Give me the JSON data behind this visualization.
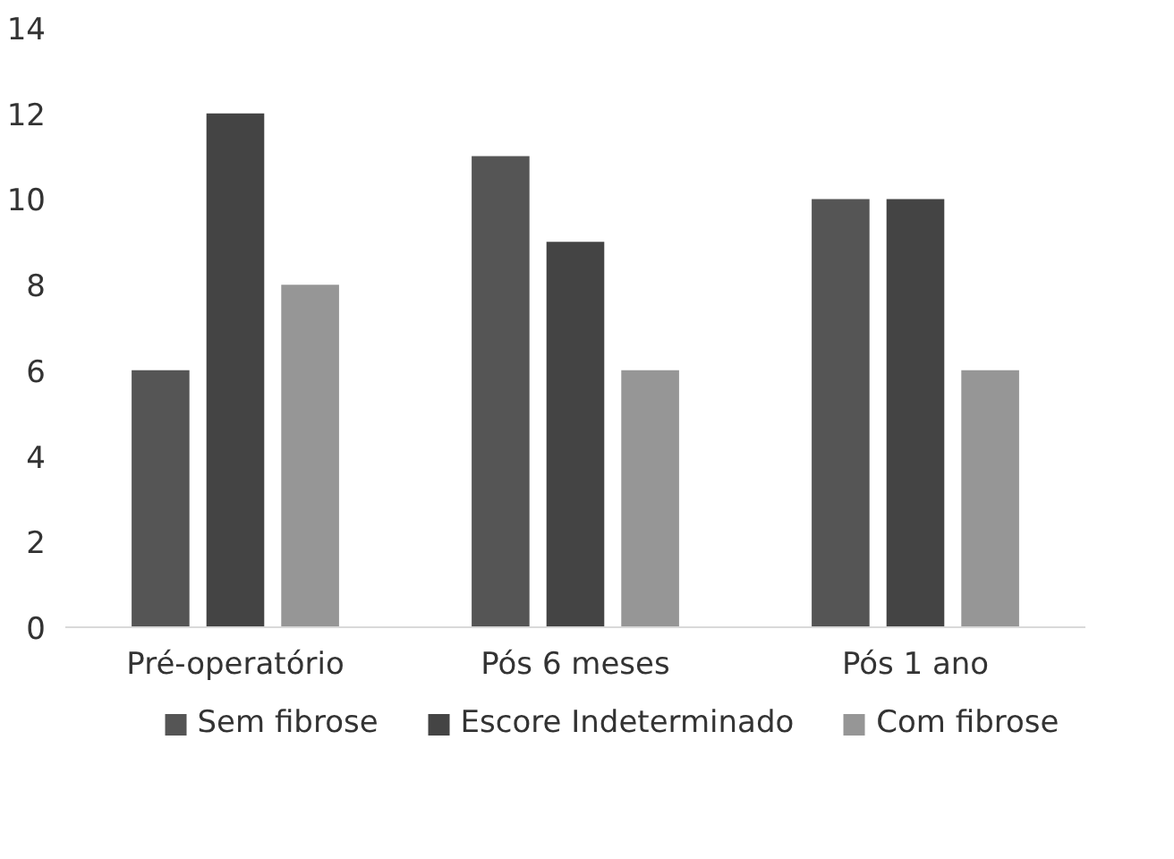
{
  "chart_data": {
    "type": "bar",
    "categories": [
      "Pré-operatório",
      "Pós 6 meses",
      "Pós 1 ano"
    ],
    "series": [
      {
        "name": "Sem fibrose",
        "color": "#555555",
        "values": [
          6,
          11,
          10
        ]
      },
      {
        "name": "Escore Indeterminado",
        "color": "#444444",
        "values": [
          12,
          9,
          10
        ]
      },
      {
        "name": "Com fibrose",
        "color": "#969696",
        "values": [
          8,
          6,
          6
        ]
      }
    ],
    "ylim": [
      0,
      14
    ],
    "yticks": [
      0,
      2,
      4,
      6,
      8,
      10,
      12,
      14
    ],
    "legend": "bottom"
  }
}
